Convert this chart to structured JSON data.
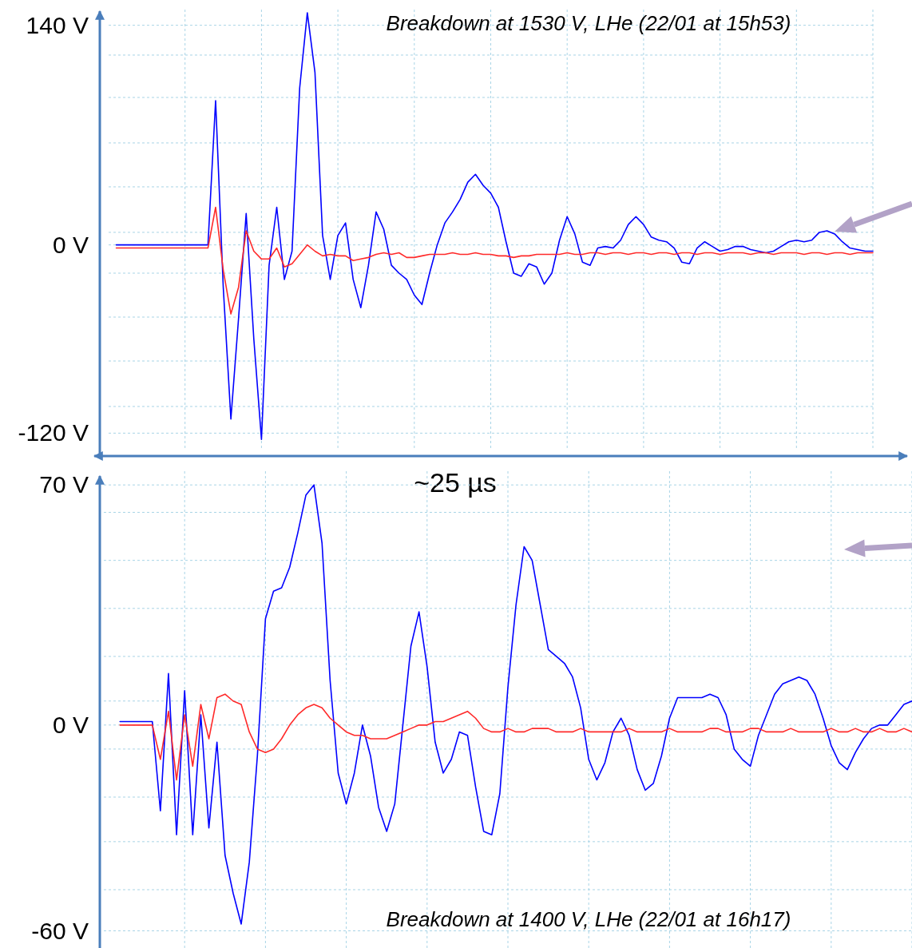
{
  "chart_data": [
    {
      "type": "line",
      "title": "Breakdown at 1530 V, LHe (22/01 at 15h53)",
      "xlabel": "~25 µs",
      "categories": [
        null,
        null,
        null,
        null,
        null,
        null,
        null,
        null,
        null,
        null,
        null,
        null,
        null,
        null,
        null,
        null,
        null,
        null,
        null,
        null,
        null,
        null,
        null,
        null,
        null,
        null,
        null,
        null,
        null,
        null,
        null,
        null,
        null,
        null,
        null,
        null,
        null,
        null,
        null,
        null,
        null,
        null,
        null,
        null,
        null,
        null,
        null,
        null,
        null,
        null,
        null,
        null,
        null,
        null,
        null,
        null,
        null,
        null,
        null,
        null,
        null,
        null,
        null,
        null,
        null,
        null,
        null,
        null,
        null,
        null,
        null,
        null,
        null,
        null,
        null,
        null,
        null,
        null,
        null,
        null,
        null,
        null,
        null,
        null,
        null,
        null,
        null,
        null,
        null,
        null,
        null,
        null,
        null,
        null,
        null,
        null,
        null,
        null,
        null,
        null,
        null
      ],
      "series": [
        {
          "color": "#0000ff",
          "values": [
            null,
            0,
            0,
            0,
            0,
            0,
            0,
            0,
            0,
            0,
            0,
            0,
            0,
            0,
            92,
            -27,
            -111,
            -47,
            20,
            -60,
            -124,
            -13,
            24,
            -22,
            -4,
            100,
            148,
            110,
            6,
            -22,
            6,
            14,
            -22,
            -40,
            -13,
            21,
            10,
            -13,
            -18,
            -22,
            -32,
            -38,
            -18,
            0,
            14,
            21,
            29,
            40,
            45,
            38,
            33,
            24,
            2,
            -18,
            -20,
            -12,
            -14,
            -25,
            -18,
            3,
            18,
            7,
            -11,
            -13,
            -2,
            -1,
            -2,
            3,
            13,
            18,
            13,
            5,
            3,
            2,
            -2,
            -11,
            -12,
            -2,
            2,
            -1,
            -4,
            -3,
            -1,
            -1,
            -3,
            -4,
            -5,
            -4,
            -1,
            2,
            3,
            2,
            3,
            8,
            9,
            7,
            2,
            -2,
            -3,
            -4,
            -4
          ]
        },
        {
          "color": "#ff2a2a",
          "values": [
            null,
            -2,
            -2,
            -2,
            -2,
            -2,
            -2,
            -2,
            -2,
            -2,
            -2,
            -2,
            -2,
            -2,
            24,
            -16,
            -44,
            -27,
            9,
            -4,
            -9,
            -9,
            -2,
            -14,
            -12,
            -6,
            0,
            -4,
            -7,
            -6,
            -7,
            -7,
            -10,
            -9,
            -8,
            -6,
            -5,
            -6,
            -5,
            -8,
            -8,
            -7,
            -6,
            -6,
            -6,
            -5,
            -6,
            -6,
            -5,
            -6,
            -6,
            -7,
            -7,
            -8,
            -7,
            -7,
            -6,
            -6,
            -6,
            -6,
            -5,
            -6,
            -6,
            -5,
            -5,
            -6,
            -5,
            -5,
            -6,
            -5,
            -5,
            -6,
            -5,
            -5,
            -6,
            -5,
            -5,
            -6,
            -5,
            -5,
            -6,
            -5,
            -5,
            -5,
            -6,
            -5,
            -5,
            -6,
            -5,
            -5,
            -5,
            -6,
            -5,
            -5,
            -6,
            -5,
            -5,
            -6,
            -5,
            -5,
            -5
          ]
        }
      ],
      "ylim": [
        -130,
        150
      ],
      "yticks": [
        {
          "value": 140,
          "label": "140 V"
        },
        {
          "value": 121,
          "label": null
        },
        {
          "value": 94,
          "label": null
        },
        {
          "value": 65,
          "label": null
        },
        {
          "value": 37,
          "label": null
        },
        {
          "value": 8,
          "label": null
        },
        {
          "value": 0,
          "label": "0 V"
        },
        {
          "value": -18,
          "label": null
        },
        {
          "value": -46,
          "label": null
        },
        {
          "value": -74,
          "label": null
        },
        {
          "value": -103,
          "label": null
        },
        {
          "value": -120,
          "label": "-120 V"
        }
      ],
      "grid": true,
      "marker": "none",
      "line_style": "solid"
    },
    {
      "type": "line",
      "title": "Breakdown at 1400 V, LHe (22/01 at 16h17)",
      "categories": [
        null,
        null,
        null,
        null,
        null,
        null,
        null,
        null,
        null,
        null,
        null,
        null,
        null,
        null,
        null,
        null,
        null,
        null,
        null,
        null,
        null,
        null,
        null,
        null,
        null,
        null,
        null,
        null,
        null,
        null,
        null,
        null,
        null,
        null,
        null,
        null,
        null,
        null,
        null,
        null,
        null,
        null,
        null,
        null,
        null,
        null,
        null,
        null,
        null,
        null,
        null,
        null,
        null,
        null,
        null,
        null,
        null,
        null,
        null,
        null,
        null,
        null,
        null,
        null,
        null,
        null,
        null,
        null,
        null,
        null,
        null,
        null,
        null,
        null,
        null,
        null,
        null,
        null,
        null,
        null,
        null,
        null,
        null,
        null,
        null,
        null,
        null,
        null,
        null,
        null,
        null,
        null,
        null,
        null,
        null,
        null,
        null,
        null,
        null,
        null,
        null
      ],
      "series": [
        {
          "color": "#0000ff",
          "values": [
            null,
            null,
            1,
            1,
            1,
            1,
            1,
            -25,
            15,
            -32,
            10,
            -32,
            3,
            -30,
            -5,
            -38,
            -49,
            -58,
            -40,
            -9,
            31,
            39,
            40,
            46,
            56,
            67,
            70,
            53,
            13,
            -14,
            -23,
            -14,
            0,
            -9,
            -24,
            -31,
            -23,
            0,
            23,
            33,
            17,
            -5,
            -14,
            -10,
            -2,
            -3,
            -18,
            -31,
            -32,
            -20,
            11,
            35,
            52,
            48,
            35,
            22,
            20,
            18,
            14,
            5,
            -10,
            -16,
            -11,
            -2,
            2,
            -3,
            -13,
            -19,
            -17,
            -9,
            2,
            8,
            8,
            8,
            8,
            9,
            8,
            3,
            -7,
            -10,
            -12,
            -3,
            3,
            9,
            12,
            13,
            14,
            13,
            9,
            2,
            -6,
            -11,
            -13,
            -8,
            -4,
            -1,
            0,
            0,
            3,
            6,
            7
          ]
        },
        {
          "color": "#ff2a2a",
          "values": [
            null,
            null,
            0,
            0,
            0,
            0,
            0,
            -10,
            4,
            -16,
            3,
            -12,
            6,
            -4,
            8,
            9,
            7,
            6,
            -2,
            -7,
            -8,
            -7,
            -4,
            0,
            3,
            5,
            6,
            5,
            2,
            0,
            -2,
            -3,
            -3,
            -4,
            -4,
            -4,
            -3,
            -2,
            -1,
            0,
            0,
            1,
            1,
            2,
            3,
            4,
            2,
            -1,
            -2,
            -2,
            -1,
            -2,
            -2,
            -1,
            -1,
            -1,
            -2,
            -2,
            -2,
            -1,
            -2,
            -2,
            -2,
            -2,
            -2,
            -1,
            -2,
            -2,
            -2,
            -2,
            -1,
            -2,
            -2,
            -2,
            -2,
            -1,
            -1,
            -2,
            -2,
            -2,
            -1,
            -1,
            -2,
            -2,
            -2,
            -1,
            -2,
            -2,
            -2,
            -2,
            -1,
            -2,
            -2,
            -1,
            -2,
            -2,
            -1,
            -2,
            -2,
            -1,
            -2
          ]
        }
      ],
      "ylim": [
        -65,
        74
      ],
      "yticks": [
        {
          "value": 70,
          "label": "70 V"
        },
        {
          "value": 62,
          "label": null
        },
        {
          "value": 48,
          "label": null
        },
        {
          "value": 34,
          "label": null
        },
        {
          "value": 20,
          "label": null
        },
        {
          "value": 7,
          "label": null
        },
        {
          "value": 0,
          "label": "0 V"
        },
        {
          "value": -7,
          "label": null
        },
        {
          "value": -21,
          "label": null
        },
        {
          "value": -34,
          "label": null
        },
        {
          "value": -48,
          "label": null
        },
        {
          "value": -60,
          "label": "-60 V"
        }
      ],
      "grid": true,
      "marker": "none",
      "line_style": "solid"
    }
  ]
}
